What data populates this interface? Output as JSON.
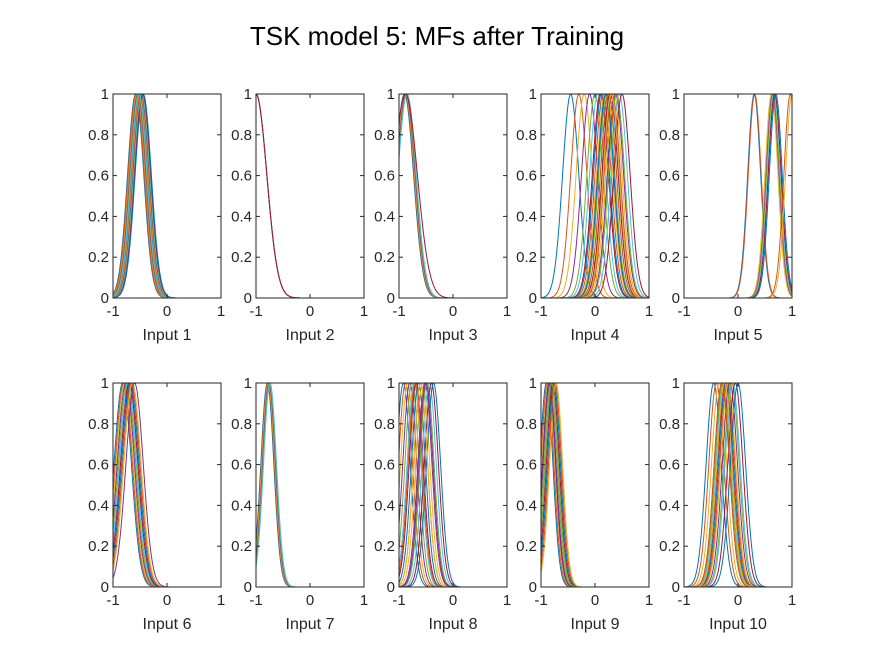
{
  "chart_data": {
    "type": "line",
    "title": "TSK model 5: MFs after Training",
    "xlim": [
      -1,
      1
    ],
    "ylim": [
      0,
      1
    ],
    "x_ticks": [
      "-1",
      "0",
      "1"
    ],
    "y_ticks": [
      "0",
      "0.2",
      "0.4",
      "0.6",
      "0.8",
      "1"
    ],
    "series_colors": [
      "#0072BD",
      "#D95319",
      "#EDB120",
      "#7E2F8E",
      "#77AC30",
      "#4DBEEE",
      "#A2142F"
    ],
    "panels": [
      {
        "xlabel": "Input 1",
        "centers": [
          -0.58,
          -0.57,
          -0.56,
          -0.55,
          -0.54,
          -0.53,
          -0.52,
          -0.51,
          -0.5,
          -0.49,
          -0.48,
          -0.47,
          -0.46,
          -0.45,
          -0.44,
          -0.56,
          -0.55,
          -0.54,
          -0.53,
          -0.52
        ],
        "sigmas": [
          0.15,
          0.15,
          0.15,
          0.15,
          0.15,
          0.15,
          0.15,
          0.15,
          0.15,
          0.15,
          0.15,
          0.15,
          0.15,
          0.15,
          0.15,
          0.15,
          0.15,
          0.15,
          0.15,
          0.15
        ]
      },
      {
        "xlabel": "Input 2",
        "centers": [
          -1,
          -1,
          -1,
          -1,
          -1,
          -1,
          -1
        ],
        "sigmas": [
          0.2,
          0.2,
          0.2,
          0.2,
          0.2,
          0.2,
          0.2
        ]
      },
      {
        "xlabel": "Input 3",
        "centers": [
          -0.9,
          -0.89,
          -0.88,
          -0.87,
          -0.86,
          -0.85,
          -0.88
        ],
        "sigmas": [
          0.17,
          0.17,
          0.17,
          0.17,
          0.17,
          0.17,
          0.22
        ]
      },
      {
        "xlabel": "Input 4",
        "centers": [
          -0.45,
          -0.3,
          -0.2,
          -0.1,
          0,
          0.05,
          0.1,
          0.12,
          0.15,
          0.18,
          0.2,
          0.22,
          0.25,
          0.28,
          0.3,
          0.32,
          0.35,
          0.38,
          0.4,
          0.45,
          0.5,
          0.2,
          0.25,
          0.3
        ],
        "sigmas": [
          0.15,
          0.15,
          0.15,
          0.15,
          0.15,
          0.15,
          0.15,
          0.15,
          0.15,
          0.15,
          0.15,
          0.15,
          0.15,
          0.15,
          0.15,
          0.15,
          0.15,
          0.15,
          0.15,
          0.15,
          0.15,
          0.15,
          0.15,
          0.15
        ]
      },
      {
        "xlabel": "Input 5",
        "centers": [
          0.3,
          0.31,
          0.62,
          0.64,
          0.65,
          0.67,
          0.68,
          0.7,
          0.97,
          1.0
        ],
        "sigmas": [
          0.12,
          0.12,
          0.12,
          0.12,
          0.12,
          0.12,
          0.12,
          0.12,
          0.12,
          0.12
        ]
      },
      {
        "xlabel": "Input 6",
        "centers": [
          -0.82,
          -0.8,
          -0.78,
          -0.76,
          -0.74,
          -0.72,
          -0.7,
          -0.68,
          -0.66,
          -0.64,
          -0.6
        ],
        "sigmas": [
          0.16,
          0.16,
          0.16,
          0.16,
          0.16,
          0.16,
          0.16,
          0.16,
          0.16,
          0.16,
          0.16
        ]
      },
      {
        "xlabel": "Input 7",
        "centers": [
          -0.79,
          -0.78,
          -0.77,
          -0.76,
          -0.75,
          -0.74
        ],
        "sigmas": [
          0.12,
          0.12,
          0.12,
          0.12,
          0.12,
          0.12
        ]
      },
      {
        "xlabel": "Input 8",
        "centers": [
          -0.92,
          -0.88,
          -0.84,
          -0.8,
          -0.76,
          -0.72,
          -0.68,
          -0.64,
          -0.6,
          -0.56,
          -0.52,
          -0.48,
          -0.44,
          -0.4,
          -0.36,
          -0.7,
          -0.6,
          -0.5
        ],
        "sigmas": [
          0.13,
          0.13,
          0.13,
          0.13,
          0.13,
          0.13,
          0.13,
          0.13,
          0.13,
          0.13,
          0.13,
          0.13,
          0.13,
          0.13,
          0.13,
          0.13,
          0.13,
          0.13
        ]
      },
      {
        "xlabel": "Input 9",
        "centers": [
          -0.9,
          -0.88,
          -0.86,
          -0.84,
          -0.82,
          -0.8,
          -0.78,
          -0.76,
          -0.74,
          -0.72,
          -0.85,
          -0.8
        ],
        "sigmas": [
          0.12,
          0.12,
          0.12,
          0.12,
          0.12,
          0.12,
          0.12,
          0.12,
          0.12,
          0.12,
          0.12,
          0.12
        ]
      },
      {
        "xlabel": "Input 10",
        "centers": [
          -0.45,
          -0.4,
          -0.35,
          -0.3,
          -0.28,
          -0.26,
          -0.24,
          -0.22,
          -0.2,
          -0.18,
          -0.15,
          -0.12,
          -0.1,
          -0.05,
          0,
          -0.3,
          -0.25
        ],
        "sigmas": [
          0.14,
          0.14,
          0.14,
          0.14,
          0.14,
          0.14,
          0.14,
          0.14,
          0.14,
          0.14,
          0.14,
          0.14,
          0.14,
          0.14,
          0.14,
          0.14,
          0.14
        ]
      }
    ]
  }
}
